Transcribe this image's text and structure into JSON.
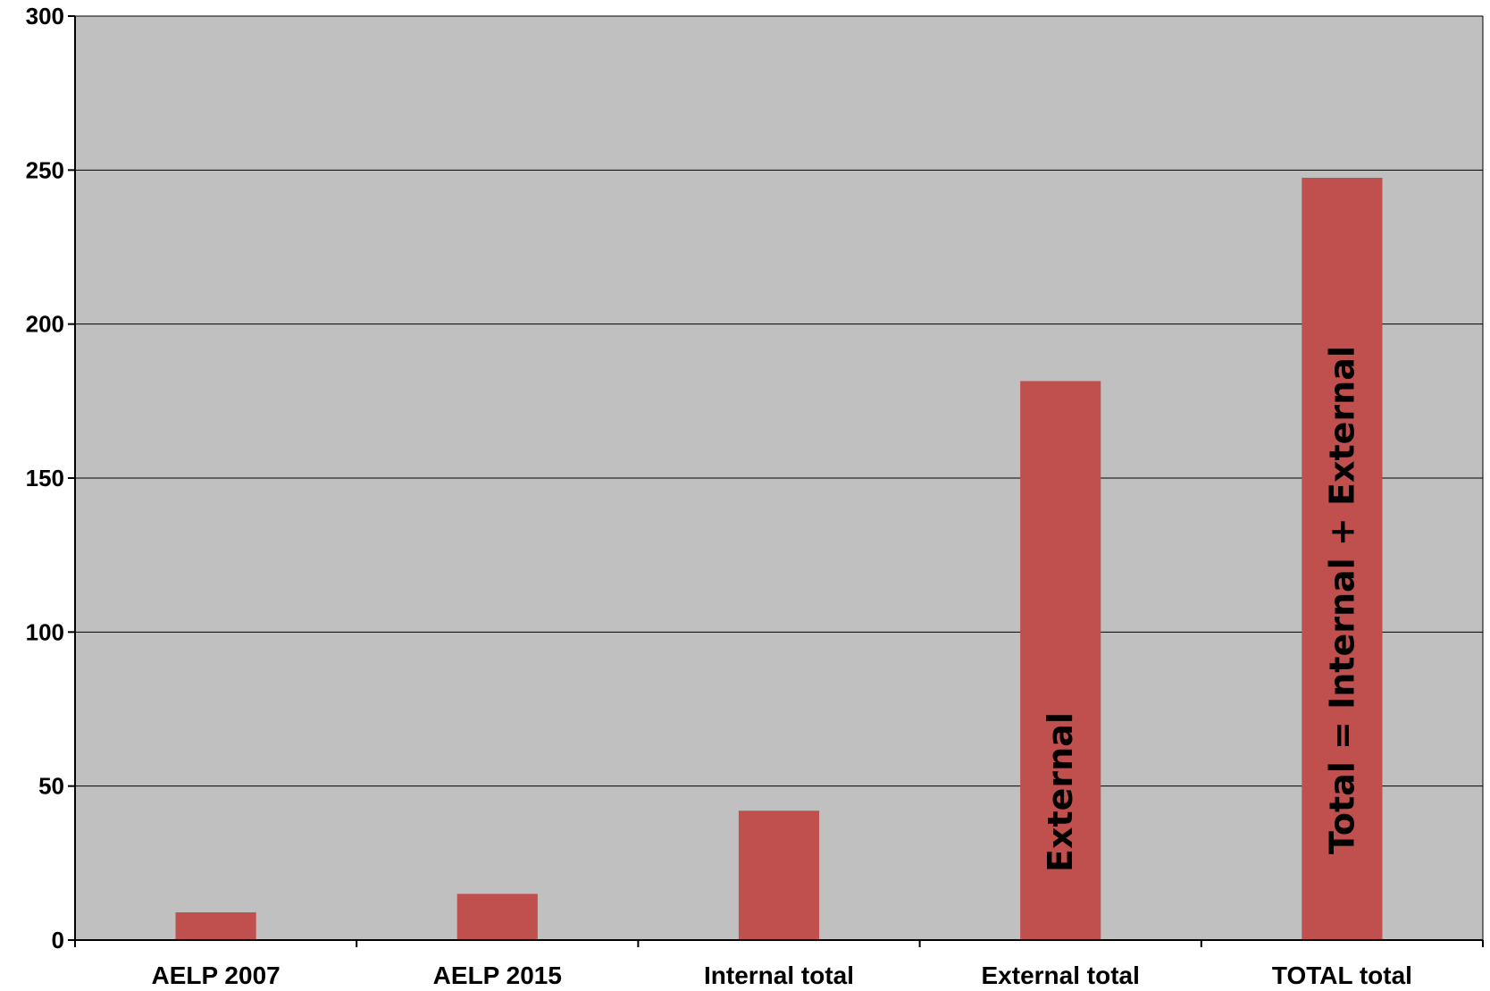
{
  "chart_data": {
    "type": "bar",
    "title": "",
    "xlabel": "",
    "ylabel": "",
    "categories": [
      "AELP 2007",
      "AELP 2015",
      "Internal total",
      "External total",
      "TOTAL total"
    ],
    "values": [
      9,
      15,
      42,
      181.5,
      247.5
    ],
    "ylim": [
      0,
      300
    ],
    "yticks": [
      0,
      50,
      100,
      150,
      200,
      250,
      300
    ],
    "grid": true,
    "legend": "none",
    "annotations": [
      {
        "category_index": 3,
        "text": "External"
      },
      {
        "category_index": 4,
        "text": "Total = Internal + External"
      }
    ],
    "colors": {
      "bar": "#C0504D",
      "plot_background": "#C0C0C0",
      "gridline": "#000000"
    }
  }
}
